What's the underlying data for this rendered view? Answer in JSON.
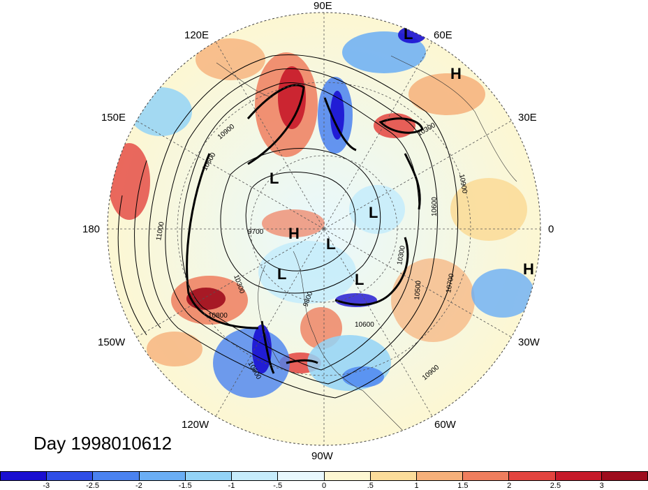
{
  "map": {
    "projection": "north-polar-stereographic",
    "longitude_labels": [
      "90E",
      "60E",
      "30E",
      "0",
      "30W",
      "60W",
      "90W",
      "120W",
      "150W",
      "180",
      "150E",
      "120E"
    ],
    "pressure_centers": [
      "L",
      "H",
      "L",
      "L",
      "H",
      "L",
      "L",
      "L",
      "H"
    ],
    "contour_labels": [
      "10900",
      "10600",
      "10300",
      "9700",
      "10300",
      "9800",
      "10600",
      "10500",
      "10700",
      "10900",
      "10600",
      "10800",
      "11000",
      "10900",
      "10600",
      "10300"
    ],
    "day_label": "Day 1998010612"
  },
  "colorbar": {
    "tick_labels": [
      "-3",
      "-2.5",
      "-2",
      "-1.5",
      "-1",
      "-.5",
      "0",
      ".5",
      "1",
      "1.5",
      "2",
      "2.5",
      "3"
    ],
    "colors": [
      "#1a0fd1",
      "#2f4ee6",
      "#4a82f0",
      "#6aaef5",
      "#93d3f7",
      "#c6ecfb",
      "#e8f8fd",
      "#fdf7d2",
      "#fbdc9a",
      "#f6b07a",
      "#ef7e5e",
      "#e3443f",
      "#c61a2a",
      "#9e0c1d"
    ]
  }
}
